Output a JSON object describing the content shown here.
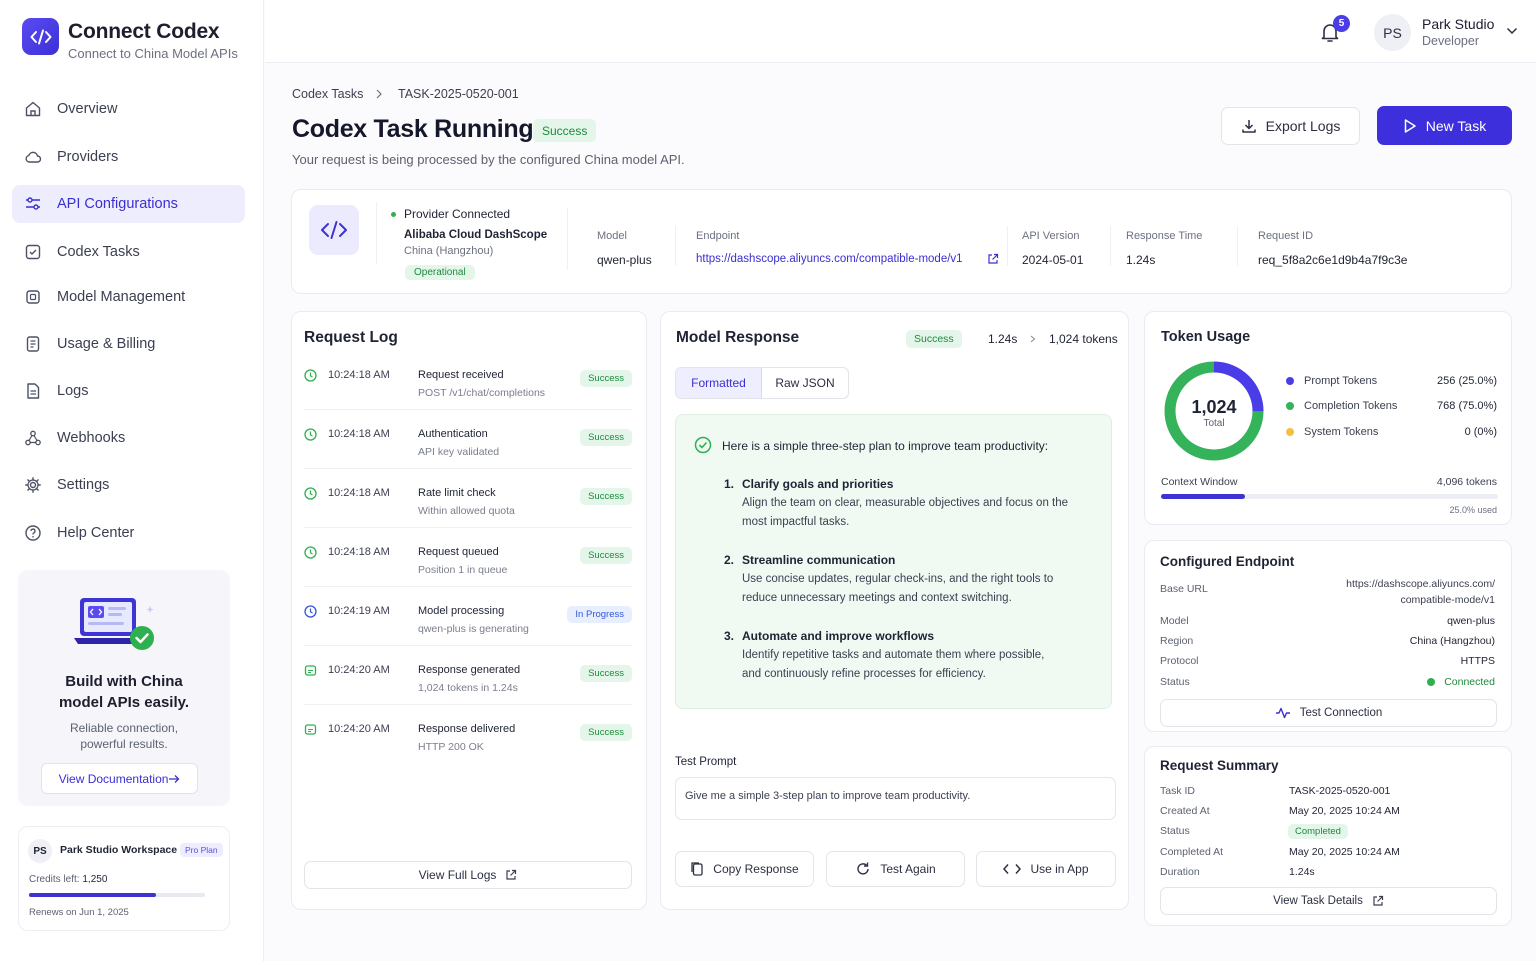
{
  "brand": {
    "title": "Connect Codex",
    "subtitle": "Connect to China Model APIs"
  },
  "sidebar": {
    "items": [
      {
        "label": "Overview",
        "icon": "home-icon"
      },
      {
        "label": "Providers",
        "icon": "cloud-icon"
      },
      {
        "label": "API Configurations",
        "icon": "sliders-icon",
        "active": true
      },
      {
        "label": "Codex Tasks",
        "icon": "check-square-icon"
      },
      {
        "label": "Model Management",
        "icon": "cpu-icon"
      },
      {
        "label": "Usage & Billing",
        "icon": "receipt-icon"
      },
      {
        "label": "Logs",
        "icon": "document-icon"
      },
      {
        "label": "Webhooks",
        "icon": "webhook-icon"
      },
      {
        "label": "Settings",
        "icon": "gear-icon"
      },
      {
        "label": "Help Center",
        "icon": "help-icon"
      }
    ],
    "promo": {
      "title": "Build with China model APIs easily.",
      "subtitle": "Reliable connection, powerful results.",
      "button": "View Documentation"
    },
    "workspace": {
      "initials": "PS",
      "name": "Park Studio Workspace",
      "plan": "Pro Plan",
      "credits_label": "Credits left:",
      "credits_value": "1,250",
      "credits_fraction": 0.72,
      "renews": "Renews on Jun 1, 2025"
    }
  },
  "header": {
    "notifications": "5",
    "user": {
      "initials": "PS",
      "name": "Park Studio",
      "role": "Developer"
    }
  },
  "breadcrumb": {
    "parent": "Codex Tasks",
    "current": "TASK-2025-0520-001"
  },
  "page": {
    "title": "Codex Task Running",
    "status": "Success",
    "subtitle": "Your request is being processed by the configured China model API.",
    "export_button": "Export Logs",
    "new_task_button": "New Task"
  },
  "provider": {
    "connected_label": "Provider Connected",
    "name": "Alibaba Cloud DashScope",
    "region": "China (Hangzhou)",
    "status": "Operational",
    "fields": [
      {
        "label": "Model",
        "value": "qwen-plus"
      },
      {
        "label": "Endpoint",
        "value": "https://dashscope.aliyuncs.com/compatible-mode/v1"
      },
      {
        "label": "API Version",
        "value": "2024-05-01"
      },
      {
        "label": "Response Time",
        "value": "1.24s"
      },
      {
        "label": "Request ID",
        "value": "req_5f8a2c6e1d9b4a7f9c3e"
      }
    ]
  },
  "request_log": {
    "title": "Request Log",
    "entries": [
      {
        "time": "10:24:18 AM",
        "title": "Request received",
        "sub": "POST /v1/chat/completions",
        "status": "Success"
      },
      {
        "time": "10:24:18 AM",
        "title": "Authentication",
        "sub": "API key validated",
        "status": "Success"
      },
      {
        "time": "10:24:18 AM",
        "title": "Rate limit check",
        "sub": "Within allowed quota",
        "status": "Success"
      },
      {
        "time": "10:24:18 AM",
        "title": "Request queued",
        "sub": "Position 1 in queue",
        "status": "Success"
      },
      {
        "time": "10:24:19 AM",
        "title": "Model processing",
        "sub": "qwen-plus is generating",
        "status": "In Progress"
      },
      {
        "time": "10:24:20 AM",
        "title": "Response generated",
        "sub": "1,024 tokens in 1.24s",
        "status": "Success"
      },
      {
        "time": "10:24:20 AM",
        "title": "Response delivered",
        "sub": "HTTP 200 OK",
        "status": "Success"
      }
    ],
    "view_full": "View Full Logs"
  },
  "model_response": {
    "title": "Model Response",
    "status": "Success",
    "time": "1.24s",
    "tokens": "1,024 tokens",
    "tab_formatted": "Formatted",
    "tab_raw": "Raw JSON",
    "intro": "Here is a simple three-step plan to improve team productivity:",
    "steps": [
      {
        "num": "1.",
        "title": "Clarify goals and priorities",
        "line1": "Align the team on clear, measurable objectives and focus on the",
        "line2": "most impactful tasks."
      },
      {
        "num": "2.",
        "title": "Streamline communication",
        "line1": "Use concise updates, regular check-ins, and the right tools to",
        "line2": "reduce unnecessary meetings and context switching."
      },
      {
        "num": "3.",
        "title": "Automate and improve workflows",
        "line1": "Identify repetitive tasks and automate them where possible,",
        "line2": "and continuously refine processes for efficiency."
      }
    ],
    "prompt_label": "Test Prompt",
    "prompt": "Give me a simple 3-step plan to improve team productivity.",
    "copy_button": "Copy Response",
    "test_again_button": "Test Again",
    "use_in_app_button": "Use in App"
  },
  "token_usage": {
    "title": "Token Usage",
    "total": "1,024",
    "total_label": "Total",
    "rows": [
      {
        "label": "Prompt Tokens",
        "value": "256",
        "pct": "(25.0%)",
        "color": "#4a3ce6"
      },
      {
        "label": "Completion Tokens",
        "value": "768",
        "pct": "(75.0%)",
        "color": "#34b35a"
      },
      {
        "label": "System Tokens",
        "value": "0",
        "pct": "(0%)",
        "color": "#f3c043"
      }
    ],
    "context_label": "Context Window",
    "context_value": "4,096 tokens",
    "context_used": "25.0% used",
    "context_fraction": 0.25
  },
  "endpoint": {
    "title": "Configured Endpoint",
    "base_label": "Base URL",
    "base_line1": "https://dashscope.aliyuncs.com/",
    "base_line2": "compatible-mode/v1",
    "rows": [
      {
        "label": "Model",
        "value": "qwen-plus"
      },
      {
        "label": "Region",
        "value": "China (Hangzhou)"
      },
      {
        "label": "Protocol",
        "value": "HTTPS"
      },
      {
        "label": "Status",
        "value": "Connected"
      }
    ],
    "test_button": "Test Connection"
  },
  "summary": {
    "title": "Request Summary",
    "rows": [
      {
        "label": "Task ID",
        "value": "TASK-2025-0520-001"
      },
      {
        "label": "Created At",
        "value": "May 20, 2025 10:24 AM"
      },
      {
        "label": "Status",
        "value": "Completed"
      },
      {
        "label": "Completed At",
        "value": "May 20, 2025 10:24 AM"
      },
      {
        "label": "Duration",
        "value": "1.24s"
      }
    ],
    "details_button": "View Task Details"
  }
}
